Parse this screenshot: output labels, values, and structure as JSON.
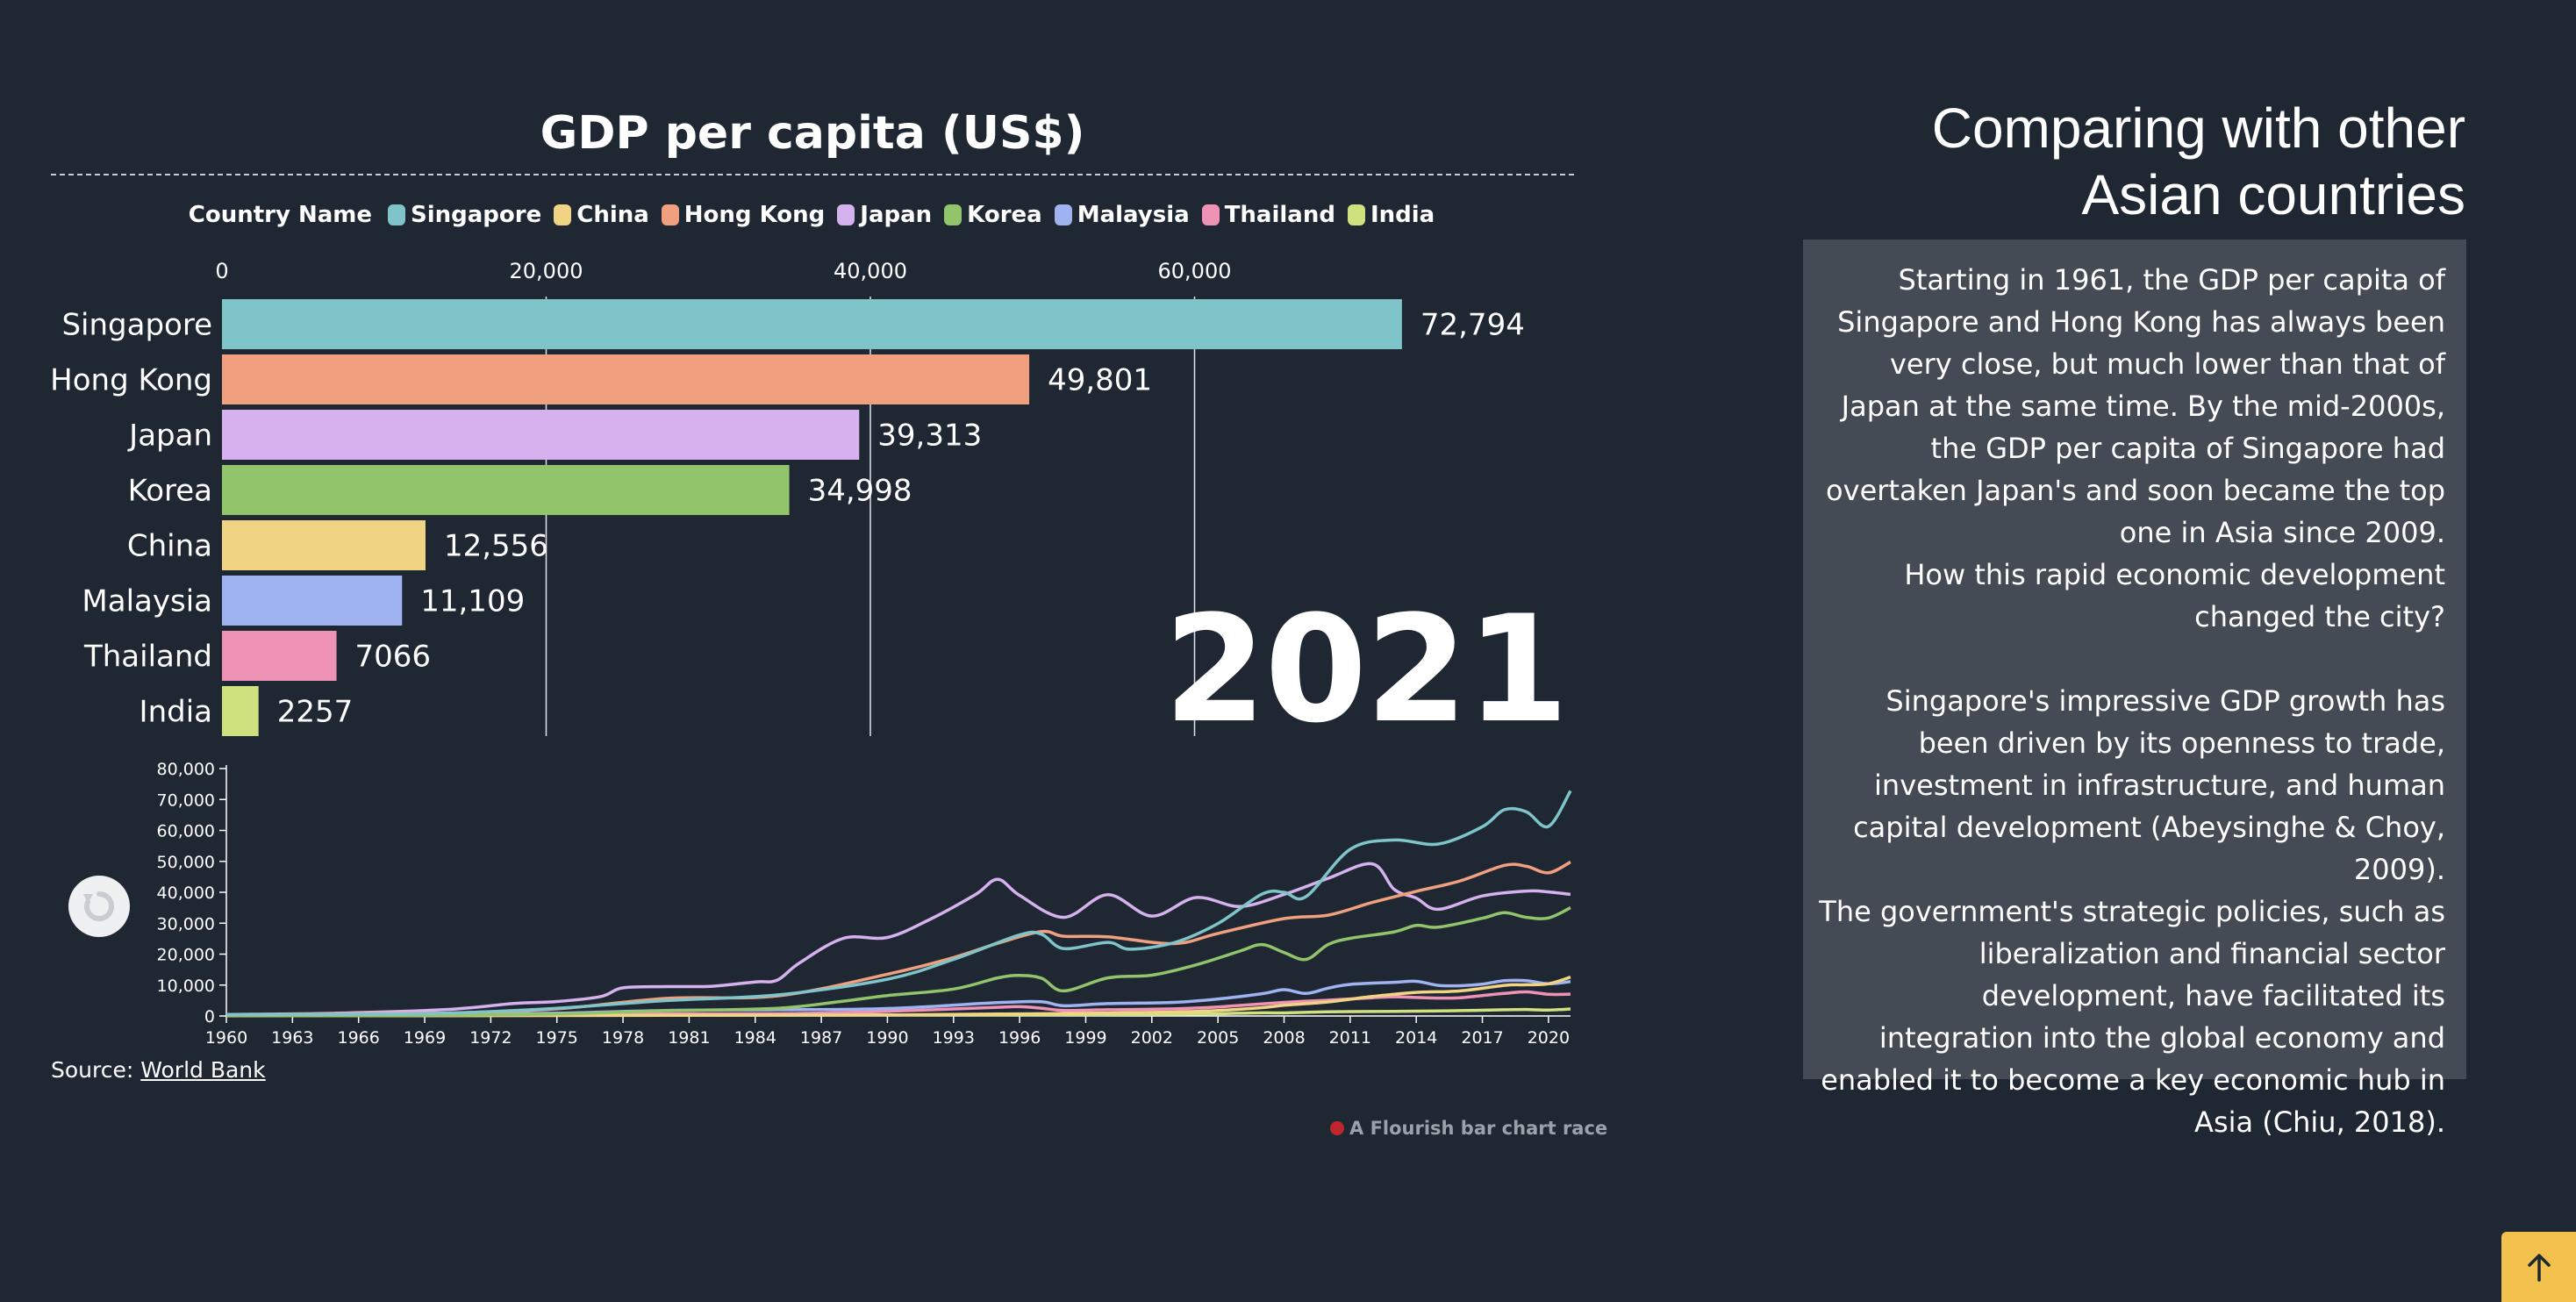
{
  "chart_data": [
    {
      "type": "bar",
      "title": "GDP per capita (US$)",
      "legend_title": "Country Name",
      "legend_placement": "top",
      "legend": [
        {
          "name": "Singapore",
          "color": "#7fc4c9"
        },
        {
          "name": "China",
          "color": "#f1d384"
        },
        {
          "name": "Hong Kong",
          "color": "#f0a07e"
        },
        {
          "name": "Japan",
          "color": "#d5b1ee"
        },
        {
          "name": "Korea",
          "color": "#92c46c"
        },
        {
          "name": "Malaysia",
          "color": "#9eb3f0"
        },
        {
          "name": "Thailand",
          "color": "#ef93b6"
        },
        {
          "name": "India",
          "color": "#cfe07e"
        }
      ],
      "categories": [
        "Singapore",
        "Hong Kong",
        "Japan",
        "Korea",
        "China",
        "Malaysia",
        "Thailand",
        "India"
      ],
      "values": [
        72794,
        49801,
        39313,
        34998,
        12556,
        11109,
        7066,
        2257
      ],
      "value_labels": [
        "72,794",
        "49,801",
        "39,313",
        "34,998",
        "12,556",
        "11,109",
        "7066",
        "2257"
      ],
      "colors": [
        "#7fc4c9",
        "#f0a07e",
        "#d5b1ee",
        "#92c46c",
        "#f1d384",
        "#9eb3f0",
        "#ef93b6",
        "#cfe07e"
      ],
      "xlim": [
        0,
        80000
      ],
      "xticks": [
        0,
        20000,
        40000,
        60000
      ],
      "xtick_labels": [
        "0",
        "20,000",
        "40,000",
        "60,000"
      ],
      "grid": true,
      "year": "2021"
    },
    {
      "type": "line",
      "ylim": [
        0,
        80000
      ],
      "yticks": [
        0,
        10000,
        20000,
        30000,
        40000,
        50000,
        60000,
        70000,
        80000
      ],
      "ytick_labels": [
        "0",
        "10,000",
        "20,000",
        "30,000",
        "40,000",
        "50,000",
        "60,000",
        "70,000",
        "80,000"
      ],
      "xlim": [
        1960,
        2021
      ],
      "xticks": [
        1960,
        1963,
        1966,
        1969,
        1972,
        1975,
        1978,
        1981,
        1984,
        1987,
        1990,
        1993,
        1996,
        1999,
        2002,
        2005,
        2008,
        2011,
        2014,
        2017,
        2020
      ],
      "series": [
        {
          "name": "Singapore",
          "color": "#7fc4c9",
          "x": [
            1960,
            1965,
            1970,
            1975,
            1980,
            1985,
            1990,
            1993,
            1996,
            1997,
            1998,
            2000,
            2001,
            2003,
            2005,
            2007,
            2008,
            2009,
            2011,
            2013,
            2015,
            2017,
            2018,
            2019,
            2020,
            2021
          ],
          "y": [
            430,
            510,
            930,
            2500,
            5000,
            6800,
            11900,
            18300,
            26200,
            26400,
            21800,
            23800,
            21600,
            23700,
            29900,
            39400,
            40000,
            38600,
            53900,
            56900,
            55600,
            61200,
            66700,
            66000,
            61300,
            72794
          ]
        },
        {
          "name": "Hong Kong",
          "color": "#f0a07e",
          "x": [
            1960,
            1965,
            1970,
            1975,
            1980,
            1985,
            1990,
            1993,
            1995,
            1997,
            1998,
            2000,
            2003,
            2005,
            2008,
            2010,
            2012,
            2014,
            2016,
            2018,
            2019,
            2020,
            2021
          ],
          "y": [
            430,
            680,
            960,
            2300,
            5700,
            6500,
            13500,
            18900,
            23500,
            27300,
            25800,
            25600,
            23400,
            26700,
            31500,
            32600,
            36700,
            40300,
            43700,
            48700,
            48400,
            46300,
            49801
          ]
        },
        {
          "name": "Japan",
          "color": "#d5b1ee",
          "x": [
            1960,
            1965,
            1970,
            1973,
            1975,
            1977,
            1978,
            1980,
            1982,
            1984,
            1985,
            1986,
            1988,
            1990,
            1992,
            1994,
            1995,
            1996,
            1998,
            2000,
            2002,
            2004,
            2006,
            2008,
            2010,
            2012,
            2013,
            2014,
            2015,
            2017,
            2019,
            2020,
            2021
          ],
          "y": [
            480,
            920,
            2100,
            3990,
            4670,
            6300,
            9100,
            9500,
            9600,
            11000,
            11600,
            17100,
            25100,
            25400,
            31500,
            39300,
            44200,
            39000,
            31900,
            39200,
            32300,
            38300,
            35400,
            39300,
            44500,
            49200,
            40900,
            38100,
            34500,
            38800,
            40400,
            40100,
            39313
          ]
        },
        {
          "name": "Korea",
          "color": "#92c46c",
          "x": [
            1960,
            1965,
            1970,
            1975,
            1980,
            1985,
            1988,
            1990,
            1993,
            1995,
            1996,
            1997,
            1998,
            2000,
            2002,
            2004,
            2006,
            2007,
            2008,
            2009,
            2010,
            2011,
            2013,
            2014,
            2015,
            2017,
            2018,
            2019,
            2020,
            2021
          ],
          "y": [
            160,
            110,
            280,
            620,
            1700,
            2500,
            4800,
            6600,
            8700,
            12300,
            13100,
            12200,
            8100,
            12300,
            13200,
            16500,
            21000,
            23100,
            20500,
            18300,
            23100,
            25100,
            27200,
            29300,
            28700,
            31600,
            33400,
            31900,
            31700,
            34998
          ]
        },
        {
          "name": "China",
          "color": "#f1d384",
          "x": [
            1960,
            1970,
            1980,
            1985,
            1990,
            1995,
            2000,
            2003,
            2005,
            2007,
            2008,
            2010,
            2012,
            2014,
            2016,
            2018,
            2019,
            2020,
            2021
          ],
          "y": [
            90,
            110,
            190,
            290,
            320,
            610,
            960,
            1290,
            1750,
            2700,
            3470,
            4550,
            6300,
            7640,
            8100,
            9900,
            10100,
            10400,
            12556
          ]
        },
        {
          "name": "Malaysia",
          "color": "#9eb3f0",
          "x": [
            1960,
            1965,
            1970,
            1975,
            1980,
            1985,
            1990,
            1995,
            1997,
            1998,
            2000,
            2003,
            2005,
            2007,
            2008,
            2009,
            2010,
            2011,
            2013,
            2014,
            2015,
            2016,
            2017,
            2018,
            2019,
            2020,
            2021
          ],
          "y": [
            230,
            320,
            380,
            900,
            1800,
            2000,
            2400,
            4300,
            4600,
            3300,
            4000,
            4400,
            5500,
            7200,
            8500,
            7300,
            9000,
            10200,
            10900,
            11200,
            9900,
            9800,
            10300,
            11400,
            11400,
            10400,
            11109
          ]
        },
        {
          "name": "Thailand",
          "color": "#ef93b6",
          "x": [
            1960,
            1970,
            1975,
            1980,
            1985,
            1990,
            1995,
            1996,
            1997,
            1998,
            2000,
            2003,
            2005,
            2008,
            2010,
            2012,
            2013,
            2014,
            2015,
            2016,
            2017,
            2018,
            2019,
            2020,
            2021
          ],
          "y": [
            100,
            200,
            350,
            700,
            750,
            1500,
            2800,
            3000,
            2500,
            1800,
            2000,
            2300,
            2900,
            4400,
            5100,
            5900,
            6200,
            6000,
            5800,
            5900,
            6600,
            7300,
            7800,
            7000,
            7066
          ]
        },
        {
          "name": "India",
          "color": "#cfe07e",
          "x": [
            1960,
            1970,
            1980,
            1990,
            1995,
            2000,
            2004,
            2007,
            2008,
            2010,
            2012,
            2014,
            2016,
            2018,
            2019,
            2020,
            2021
          ],
          "y": [
            80,
            110,
            270,
            370,
            370,
            440,
            620,
            1020,
            1000,
            1350,
            1440,
            1570,
            1730,
            2000,
            2100,
            1910,
            2257
          ]
        }
      ]
    }
  ],
  "replay_icon": "replay-icon",
  "source": {
    "prefix": "Source:",
    "link_text": "World Bank"
  },
  "credit": {
    "text": "A Flourish bar chart race",
    "icon": "flourish-dot-icon"
  },
  "side": {
    "heading_line1": "Comparing with other",
    "heading_line2": "Asian countries",
    "para1": "Starting in 1961, the GDP per capita of Singapore and Hong Kong has always been very close, but much lower than that of Japan at the same time. By the mid-2000s, the GDP per capita of Singapore had overtaken Japan's and soon became the top one in Asia since 2009.",
    "para2": "How this rapid economic development changed the city?",
    "para3": "Singapore's impressive GDP growth has been driven by its openness to trade, investment in infrastructure, and human capital development (Abeysinghe & Choy, 2009).",
    "para4": "The government's strategic policies, such as liberalization and financial sector development, have facilitated its integration into the global economy and enabled it to become a key economic hub in Asia (Chiu, 2018)."
  },
  "scroll_top_icon": "arrow-up-icon",
  "colors": {
    "background": "#1f2733",
    "panel": "#454b54",
    "accent": "#f3c14d"
  }
}
